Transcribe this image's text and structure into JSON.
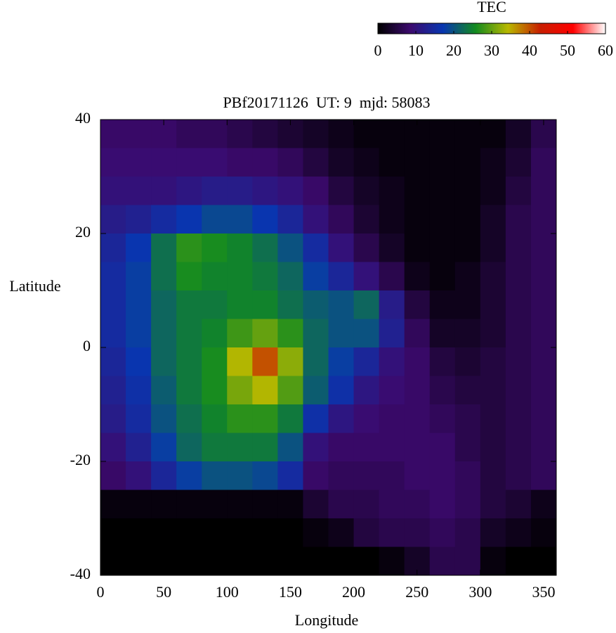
{
  "chart_data": {
    "type": "heatmap",
    "title": "PBf20171126  UT: 9  mjd: 58083",
    "x_label": "Longitude",
    "y_label": "Latitude",
    "x": [
      10,
      30,
      50,
      70,
      90,
      110,
      130,
      150,
      170,
      190,
      210,
      230,
      250,
      270,
      290,
      310,
      330,
      350
    ],
    "y": [
      37.5,
      32.5,
      27.5,
      22.5,
      17.5,
      12.5,
      7.5,
      2.5,
      -2.5,
      -7.5,
      -12.5,
      -17.5,
      -22.5,
      -27.5,
      -32.5,
      -37.5
    ],
    "z": [
      [
        8,
        8,
        8,
        7,
        7,
        6,
        5,
        4,
        3,
        2,
        1,
        1,
        1,
        1,
        1,
        1,
        3,
        6
      ],
      [
        9,
        9,
        9,
        9,
        9,
        8,
        8,
        7,
        5,
        3,
        2,
        1,
        1,
        1,
        1,
        2,
        4,
        7
      ],
      [
        10,
        10,
        10,
        11,
        12,
        12,
        11,
        10,
        8,
        5,
        3,
        2,
        1,
        1,
        1,
        2,
        5,
        7
      ],
      [
        12,
        13,
        15,
        17,
        19,
        19,
        17,
        14,
        10,
        7,
        4,
        2,
        1,
        1,
        1,
        3,
        6,
        7
      ],
      [
        14,
        17,
        23,
        27,
        26,
        25,
        23,
        20,
        15,
        10,
        6,
        3,
        1,
        1,
        1,
        3,
        6,
        7
      ],
      [
        15,
        18,
        23,
        26,
        25,
        25,
        24,
        22,
        18,
        14,
        10,
        6,
        2,
        1,
        2,
        4,
        6,
        7
      ],
      [
        15,
        18,
        22,
        24,
        24,
        25,
        25,
        23,
        21,
        20,
        22,
        12,
        5,
        2,
        2,
        4,
        6,
        7
      ],
      [
        15,
        18,
        22,
        24,
        25,
        28,
        30,
        27,
        22,
        20,
        20,
        13,
        7,
        3,
        3,
        4,
        6,
        7
      ],
      [
        14,
        17,
        22,
        24,
        26,
        34,
        40,
        32,
        22,
        18,
        14,
        10,
        8,
        5,
        4,
        5,
        6,
        7
      ],
      [
        13,
        16,
        21,
        24,
        26,
        31,
        34,
        29,
        21,
        16,
        11,
        9,
        8,
        6,
        5,
        5,
        6,
        7
      ],
      [
        12,
        15,
        20,
        23,
        25,
        27,
        27,
        24,
        16,
        11,
        9,
        8,
        8,
        7,
        6,
        5,
        6,
        7
      ],
      [
        10,
        13,
        18,
        22,
        24,
        24,
        24,
        20,
        10,
        8,
        8,
        8,
        8,
        8,
        6,
        5,
        6,
        7
      ],
      [
        8,
        10,
        14,
        18,
        20,
        20,
        19,
        15,
        8,
        7,
        7,
        7,
        8,
        8,
        7,
        5,
        6,
        7
      ],
      [
        1,
        1,
        1,
        1,
        1,
        1,
        1,
        1,
        4,
        6,
        6,
        7,
        7,
        8,
        7,
        5,
        4,
        2
      ],
      [
        0,
        0,
        0,
        0,
        0,
        0,
        0,
        0,
        1,
        2,
        5,
        6,
        6,
        7,
        6,
        3,
        2,
        1
      ],
      [
        0,
        0,
        0,
        0,
        0,
        0,
        0,
        0,
        0,
        0,
        0,
        1,
        3,
        6,
        6,
        1,
        0,
        0
      ]
    ],
    "xlim": [
      0,
      360
    ],
    "xticks": [
      0,
      50,
      100,
      150,
      200,
      250,
      300,
      350
    ],
    "ylim": [
      -40,
      40
    ],
    "yticks": [
      -40,
      -20,
      0,
      20,
      40
    ],
    "colorbar_label": "TEC",
    "clim": [
      0,
      60
    ],
    "cticks": [
      0,
      10,
      20,
      30,
      40,
      50,
      60
    ],
    "colorscale": [
      "#000000",
      "#3c0a6e",
      "#0836b0",
      "#128a20",
      "#b8b800",
      "#c81e00",
      "#ff0000",
      "#ffffff"
    ]
  }
}
